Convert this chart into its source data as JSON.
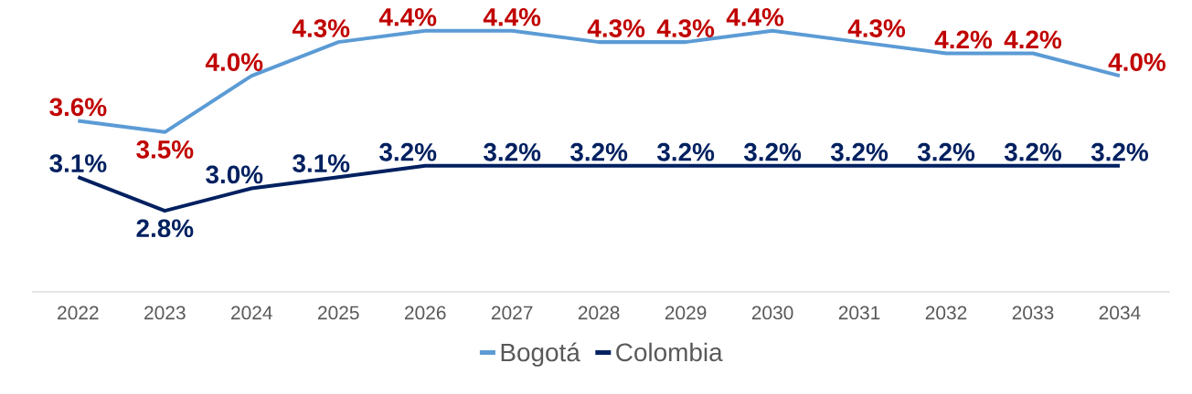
{
  "chart_data": {
    "type": "line",
    "categories": [
      "2022",
      "2023",
      "2024",
      "2025",
      "2026",
      "2027",
      "2028",
      "2029",
      "2030",
      "2031",
      "2032",
      "2033",
      "2034"
    ],
    "series": [
      {
        "name": "Bogotá",
        "color": "#5b9bd5",
        "values": [
          3.6,
          3.5,
          4.0,
          4.3,
          4.4,
          4.4,
          4.3,
          4.3,
          4.4,
          4.3,
          4.2,
          4.2,
          4.0
        ],
        "value_labels": [
          "3.6%",
          "3.5%",
          "4.0%",
          "4.3%",
          "4.4%",
          "4.4%",
          "4.3%",
          "4.3%",
          "4.4%",
          "4.3%",
          "4.2%",
          "4.2%",
          "4.0%"
        ]
      },
      {
        "name": "Colombia",
        "color": "#002060",
        "values": [
          3.1,
          2.8,
          3.0,
          3.1,
          3.2,
          3.2,
          3.2,
          3.2,
          3.2,
          3.2,
          3.2,
          3.2,
          3.2
        ],
        "value_labels": [
          "3.1%",
          "2.8%",
          "3.0%",
          "3.1%",
          "3.2%",
          "3.2%",
          "3.2%",
          "3.2%",
          "3.2%",
          "3.2%",
          "3.2%",
          "3.2%",
          "3.2%"
        ]
      }
    ],
    "grid": false,
    "legend": "bottom"
  }
}
